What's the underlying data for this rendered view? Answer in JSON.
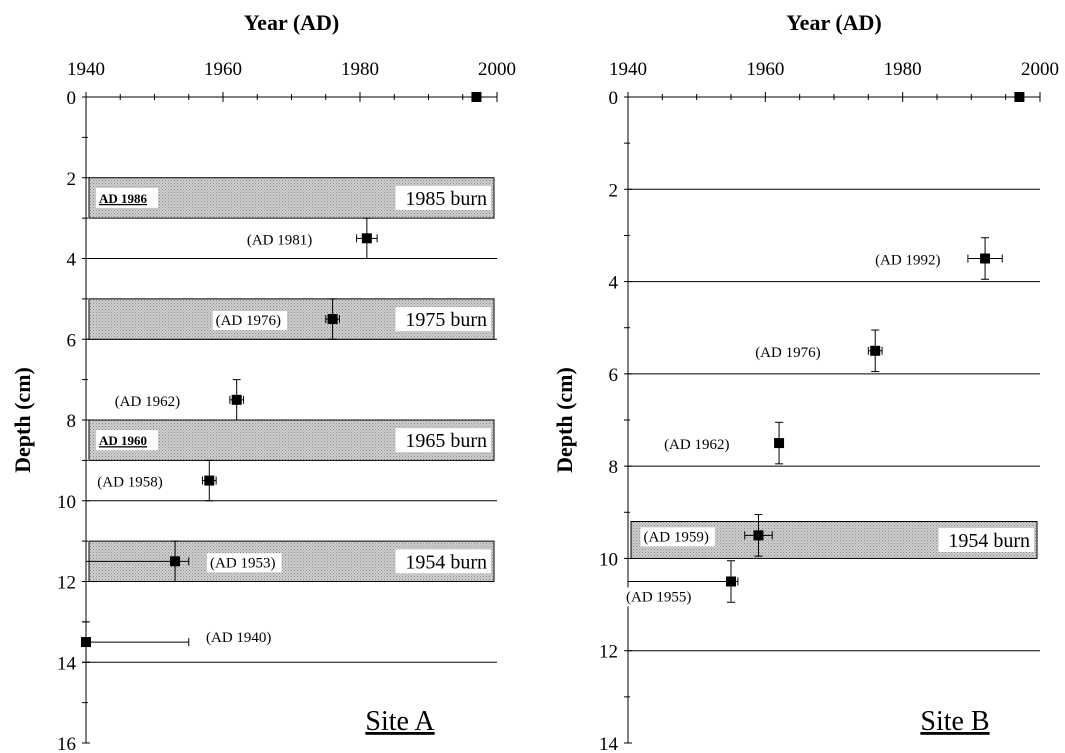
{
  "chart_data": [
    {
      "type": "scatter",
      "title": "",
      "site_label": "Site A",
      "xlabel": "Year (AD)",
      "ylabel": "Depth (cm)",
      "xlim": [
        1940,
        2000
      ],
      "ylim": [
        0,
        16
      ],
      "xticks": [
        1940,
        1960,
        1980,
        2000
      ],
      "yticks": [
        0,
        2,
        4,
        6,
        8,
        10,
        12,
        14,
        16
      ],
      "points": [
        {
          "year": 1997,
          "depth": 0,
          "xerr": 0,
          "yerr": 0,
          "label": ""
        },
        {
          "year": 1981,
          "depth": 3.5,
          "xerr": 1.5,
          "yerr": 0.5,
          "label": "(AD 1981)"
        },
        {
          "year": 1976,
          "depth": 5.5,
          "xerr": 1,
          "yerr": 0.5,
          "label": "(AD 1976)"
        },
        {
          "year": 1962,
          "depth": 7.5,
          "xerr": 1,
          "yerr": 0.5,
          "label": "(AD 1962)"
        },
        {
          "year": 1958,
          "depth": 9.5,
          "xerr": 1,
          "yerr": 0.5,
          "label": "(AD 1958)"
        },
        {
          "year": 1953,
          "depth": 11.5,
          "xerr": 2,
          "yerr": 0.5,
          "xerr_low": 20,
          "label": "(AD 1953)"
        },
        {
          "year": 1940,
          "depth": 13.5,
          "xerr": 15,
          "yerr": 0.5,
          "label": "(AD 1940)"
        }
      ],
      "burn_bands": [
        {
          "top": 2,
          "bottom": 3,
          "label": "1985 burn",
          "marker": "AD 1986"
        },
        {
          "top": 5,
          "bottom": 6,
          "label": "1975 burn",
          "marker": ""
        },
        {
          "top": 8,
          "bottom": 9,
          "label": "1965 burn",
          "marker": "AD 1960"
        },
        {
          "top": 11,
          "bottom": 12,
          "label": "1954 burn",
          "marker": ""
        }
      ],
      "gridlines_y": [
        4,
        6,
        10,
        14
      ]
    },
    {
      "type": "scatter",
      "title": "",
      "site_label": "Site B",
      "xlabel": "Year (AD)",
      "ylabel": "Depth (cm)",
      "xlim": [
        1940,
        2000
      ],
      "ylim": [
        0,
        14
      ],
      "xticks": [
        1940,
        1960,
        1980,
        2000
      ],
      "yticks": [
        0,
        2,
        4,
        6,
        8,
        10,
        12,
        14
      ],
      "points": [
        {
          "year": 1997,
          "depth": 0,
          "xerr": 0,
          "yerr": 0,
          "label": ""
        },
        {
          "year": 1992,
          "depth": 3.5,
          "xerr": 2.5,
          "yerr": 0.45,
          "label": "(AD 1992)"
        },
        {
          "year": 1976,
          "depth": 5.5,
          "xerr": 1,
          "yerr": 0.45,
          "label": "(AD 1976)"
        },
        {
          "year": 1962,
          "depth": 7.5,
          "xerr": 0.5,
          "yerr": 0.45,
          "label": "(AD 1962)"
        },
        {
          "year": 1959,
          "depth": 9.5,
          "xerr": 2,
          "yerr": 0.45,
          "label": "(AD 1959)"
        },
        {
          "year": 1955,
          "depth": 10.5,
          "xerr": 1,
          "yerr": 0.45,
          "xerr_low": 15,
          "label": "(AD 1955)"
        }
      ],
      "burn_bands": [
        {
          "top": 9.2,
          "bottom": 10,
          "label": "1954 burn",
          "marker": ""
        }
      ],
      "gridlines_y": [
        2,
        4,
        6,
        8,
        12
      ]
    }
  ]
}
